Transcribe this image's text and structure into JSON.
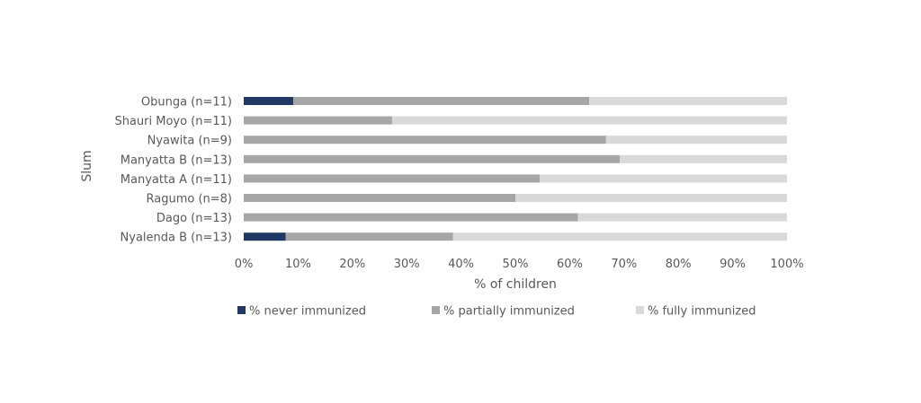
{
  "chart_data": {
    "type": "bar",
    "orientation": "horizontal",
    "stacked": "100%",
    "title": "",
    "xlabel": "% of children",
    "ylabel": "Slum",
    "xlim": [
      0,
      100
    ],
    "x_ticks": [
      "0%",
      "10%",
      "20%",
      "30%",
      "40%",
      "50%",
      "60%",
      "70%",
      "80%",
      "90%",
      "100%"
    ],
    "categories": [
      "Obunga (n=11)",
      "Shauri Moyo (n=11)",
      "Nyawita (n=9)",
      "Manyatta B (n=13)",
      "Manyatta A (n=11)",
      "Ragumo (n=8)",
      "Dago (n=13)",
      "Nyalenda B (n=13)"
    ],
    "series": [
      {
        "name": "% never immunized",
        "color": "#1f3864",
        "values": [
          9.1,
          0,
          0,
          0,
          0,
          0,
          0,
          7.7
        ]
      },
      {
        "name": "% partially immunized",
        "color": "#a6a6a6",
        "values": [
          54.5,
          27.3,
          66.7,
          69.2,
          54.5,
          50.0,
          61.5,
          30.8
        ]
      },
      {
        "name": "% fully immunized",
        "color": "#d9d9d9",
        "values": [
          36.4,
          72.7,
          33.3,
          30.8,
          45.5,
          50.0,
          38.5,
          61.5
        ]
      }
    ],
    "grid": false,
    "legend_position": "bottom"
  }
}
